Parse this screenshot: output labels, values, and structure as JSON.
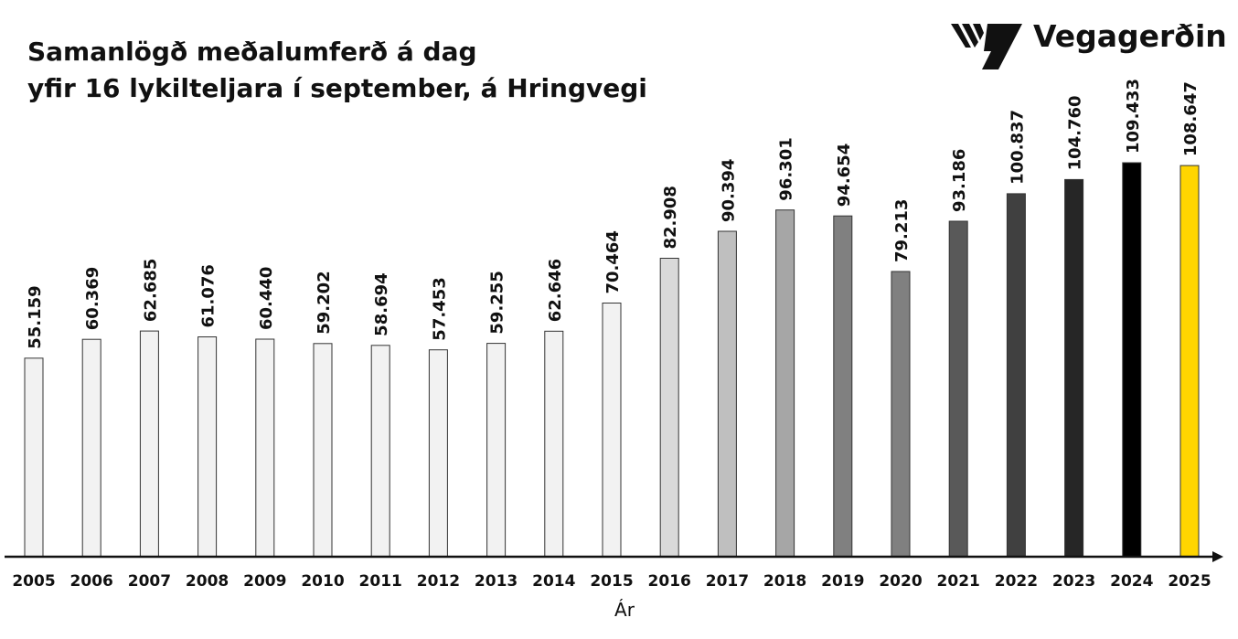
{
  "brand": {
    "name": "Vegagerðin"
  },
  "chart_data": {
    "type": "bar",
    "title_lines": [
      "Samanlögð meðalumferð á dag",
      "yfir 16 lykilteljara í september, á Hringvegi"
    ],
    "xlabel": "Ár",
    "ylabel": "",
    "categories": [
      "2005",
      "2006",
      "2007",
      "2008",
      "2009",
      "2010",
      "2011",
      "2012",
      "2013",
      "2014",
      "2015",
      "2016",
      "2017",
      "2018",
      "2019",
      "2020",
      "2021",
      "2022",
      "2023",
      "2024",
      "2025"
    ],
    "values": [
      55159,
      60369,
      62685,
      61076,
      60440,
      59202,
      58694,
      57453,
      59255,
      62646,
      70464,
      82908,
      90394,
      96301,
      94654,
      79213,
      93186,
      100837,
      104760,
      109433,
      108647
    ],
    "value_labels": [
      "55.159",
      "60.369",
      "62.685",
      "61.076",
      "60.440",
      "59.202",
      "58.694",
      "57.453",
      "59.255",
      "62.646",
      "70.464",
      "82.908",
      "90.394",
      "96.301",
      "94.654",
      "79.213",
      "93.186",
      "100.837",
      "104.760",
      "109.433",
      "108.647"
    ],
    "bar_colors": [
      "#f2f2f2",
      "#f2f2f2",
      "#f2f2f2",
      "#f2f2f2",
      "#f2f2f2",
      "#f2f2f2",
      "#f2f2f2",
      "#f2f2f2",
      "#f2f2f2",
      "#f2f2f2",
      "#f2f2f2",
      "#d9d9d9",
      "#bfbfbf",
      "#a6a6a6",
      "#808080",
      "#808080",
      "#595959",
      "#404040",
      "#262626",
      "#000000",
      "#ffd500"
    ],
    "ylim": [
      0,
      112000
    ],
    "grid": false,
    "legend": "none"
  }
}
